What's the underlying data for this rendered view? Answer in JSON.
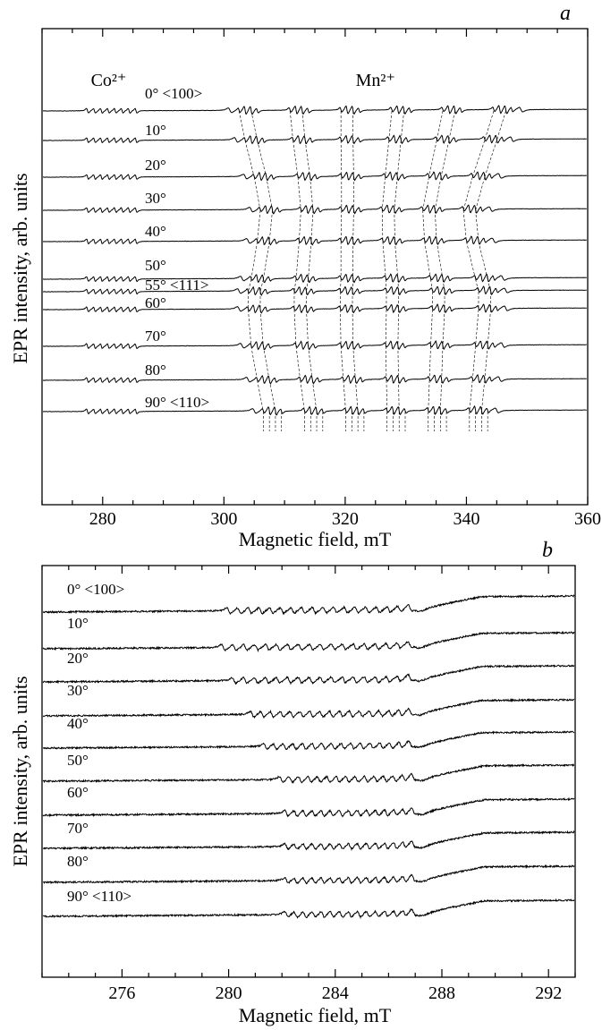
{
  "chart_data": [
    {
      "type": "line",
      "panel_label": "a",
      "xlabel": "Magnetic field, mT",
      "ylabel": "EPR intensity, arb. units",
      "xlim": [
        270,
        360
      ],
      "xticks": [
        280,
        300,
        320,
        340,
        360
      ],
      "yticks_shown": false,
      "grid": false,
      "annotations": [
        {
          "text": "Co²⁺",
          "field": 281
        },
        {
          "text": "Mn²⁺",
          "field": 325
        }
      ],
      "series": [
        {
          "name": "0° <100>",
          "angle": 0
        },
        {
          "name": "10°",
          "angle": 10
        },
        {
          "name": "20°",
          "angle": 20
        },
        {
          "name": "30°",
          "angle": 30
        },
        {
          "name": "40°",
          "angle": 40
        },
        {
          "name": "50°",
          "angle": 50
        },
        {
          "name": "55° <111>",
          "angle": 55
        },
        {
          "name": "60°",
          "angle": 60
        },
        {
          "name": "70°",
          "angle": 70
        },
        {
          "name": "80°",
          "angle": 80
        },
        {
          "name": "90° <110>",
          "angle": 90
        }
      ],
      "co_hyperfine": {
        "lines": 8,
        "field_range": [
          277.5,
          285.5
        ]
      },
      "mn_resonance_range": {
        "0": [
          301,
          349
        ],
        "10": [
          302,
          347.5
        ],
        "20": [
          303.5,
          345.5
        ],
        "30": [
          304.5,
          344
        ],
        "40": [
          304,
          344.5
        ],
        "50": [
          303,
          346
        ],
        "55": [
          302.5,
          346.5
        ],
        "60": [
          302.5,
          346.5
        ],
        "70": [
          303,
          346
        ],
        "80": [
          304,
          345.5
        ],
        "90": [
          305,
          345
        ]
      }
    },
    {
      "type": "line",
      "panel_label": "b",
      "xlabel": "Magnetic field, mT",
      "ylabel": "EPR intensity, arb. units",
      "xlim": [
        273,
        293
      ],
      "xticks": [
        276,
        280,
        284,
        288,
        292
      ],
      "yticks_shown": false,
      "grid": false,
      "series": [
        {
          "name": "0° <100>",
          "angle": 0,
          "resonance_range": [
            279.8,
            287.0
          ]
        },
        {
          "name": "10°",
          "angle": 10,
          "resonance_range": [
            279.6,
            287.0
          ]
        },
        {
          "name": "20°",
          "angle": 20,
          "resonance_range": [
            280.0,
            287.0
          ]
        },
        {
          "name": "30°",
          "angle": 30,
          "resonance_range": [
            280.7,
            287.0
          ]
        },
        {
          "name": "40°",
          "angle": 40,
          "resonance_range": [
            281.2,
            287.0
          ]
        },
        {
          "name": "50°",
          "angle": 50,
          "resonance_range": [
            281.8,
            287.1
          ]
        },
        {
          "name": "60°",
          "angle": 60,
          "resonance_range": [
            282.0,
            287.1
          ]
        },
        {
          "name": "70°",
          "angle": 70,
          "resonance_range": [
            282.0,
            287.1
          ]
        },
        {
          "name": "80°",
          "angle": 80,
          "resonance_range": [
            282.0,
            287.1
          ]
        },
        {
          "name": "90° <110>",
          "angle": 90,
          "resonance_range": [
            282.0,
            287.1
          ]
        }
      ]
    }
  ]
}
